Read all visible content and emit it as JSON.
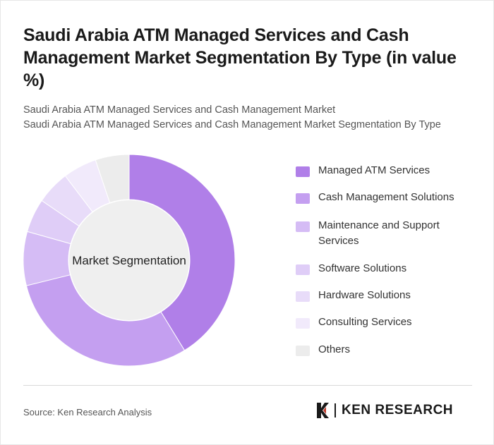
{
  "title": "Saudi Arabia ATM Managed Services and Cash Management Market Segmentation By Type (in value %)",
  "subtitle_line1": "Saudi Arabia ATM Managed Services and Cash Management Market",
  "subtitle_line2": "Saudi Arabia ATM Managed Services and Cash Management Market Segmentation By Type",
  "source": "Source: Ken Research Analysis",
  "logo_text": "KEN RESEARCH",
  "chart_data": {
    "type": "pie",
    "variant": "donut",
    "center_label": "Market Segmentation",
    "categories": [
      "Managed ATM Services",
      "Cash Management Solutions",
      "Maintenance and Support Services",
      "Software Solutions",
      "Hardware Solutions",
      "Consulting Services",
      "Others"
    ],
    "values": [
      40,
      29,
      8,
      5,
      5,
      5,
      5
    ],
    "colors": [
      "#b07fe8",
      "#c49ff0",
      "#d5bcf5",
      "#dfcdf7",
      "#e8dcf9",
      "#f1eafb",
      "#ececec"
    ],
    "legend_position": "right"
  }
}
